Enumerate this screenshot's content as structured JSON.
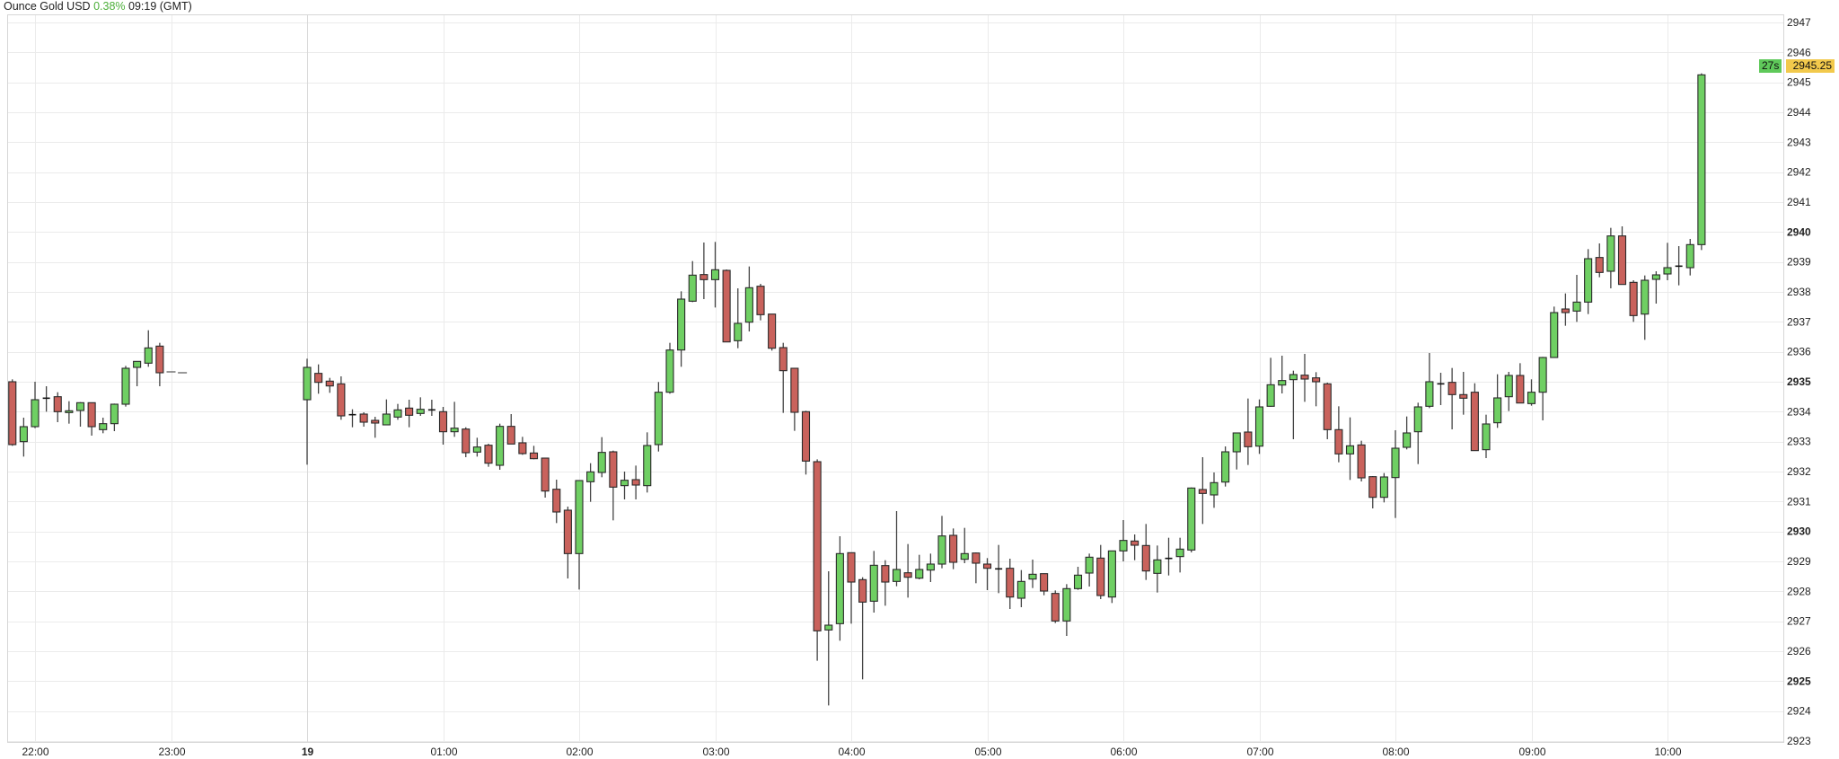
{
  "header": {
    "instrument": "Ounce Gold USD",
    "change": "0.38%",
    "time": "09:19 (GMT)"
  },
  "colors": {
    "up": "#6fcf63",
    "down": "#c9625c",
    "outline": "#2a2a2a",
    "grid": "#ebebeb",
    "price_tag": "#f2c94c",
    "timer_tag": "#5fc95a",
    "change": "#4caf3a"
  },
  "price_tag": {
    "value": "2945.25",
    "timer": "27s"
  },
  "chart_data": {
    "type": "candlestick",
    "interval": "5m",
    "ylim": [
      2923,
      2947
    ],
    "yticks": [
      2923,
      2924,
      2925,
      2926,
      2927,
      2928,
      2929,
      2930,
      2931,
      2932,
      2933,
      2934,
      2935,
      2936,
      2937,
      2938,
      2939,
      2940,
      2941,
      2942,
      2943,
      2944,
      2945,
      2946,
      2947
    ],
    "ytick_bold": [
      2925,
      2930,
      2935,
      2940
    ],
    "xticks": [
      {
        "t": "22:00",
        "label": "22:00"
      },
      {
        "t": "23:00",
        "label": "23:00"
      },
      {
        "t": "00:00",
        "label": "19",
        "bold": true
      },
      {
        "t": "01:00",
        "label": "01:00"
      },
      {
        "t": "02:00",
        "label": "02:00"
      },
      {
        "t": "03:00",
        "label": "03:00"
      },
      {
        "t": "04:00",
        "label": "04:00"
      },
      {
        "t": "05:00",
        "label": "05:00"
      },
      {
        "t": "06:00",
        "label": "06:00"
      },
      {
        "t": "07:00",
        "label": "07:00"
      },
      {
        "t": "08:00",
        "label": "08:00"
      },
      {
        "t": "09:00",
        "label": "09:00"
      },
      {
        "t": "10:00",
        "label": "10:00"
      }
    ],
    "grid": true,
    "candles_fields": [
      "time",
      "open",
      "high",
      "low",
      "close"
    ],
    "candles": [
      [
        "21:50",
        2935.0,
        2935.08,
        2932.86,
        2932.9
      ],
      [
        "21:55",
        2933.0,
        2933.8,
        2932.5,
        2933.5
      ],
      [
        "22:00",
        2933.5,
        2935.0,
        2933.45,
        2934.4
      ],
      [
        "22:05",
        2934.43,
        2934.85,
        2934.0,
        2934.45
      ],
      [
        "22:10",
        2934.5,
        2934.65,
        2933.65,
        2934.0
      ],
      [
        "22:15",
        2933.97,
        2934.35,
        2933.6,
        2934.03
      ],
      [
        "22:20",
        2934.04,
        2934.32,
        2933.5,
        2934.3
      ],
      [
        "22:25",
        2934.3,
        2934.3,
        2933.2,
        2933.5
      ],
      [
        "22:30",
        2933.4,
        2933.8,
        2933.28,
        2933.6
      ],
      [
        "22:35",
        2933.6,
        2934.27,
        2933.35,
        2934.25
      ],
      [
        "22:40",
        2934.25,
        2935.53,
        2934.17,
        2935.45
      ],
      [
        "22:45",
        2935.48,
        2935.68,
        2934.85,
        2935.68
      ],
      [
        "22:50",
        2935.62,
        2936.72,
        2935.5,
        2936.13
      ],
      [
        "22:55",
        2936.19,
        2936.3,
        2934.85,
        2935.3
      ],
      [
        "23:00",
        2935.33,
        2935.33,
        2935.33,
        2935.33
      ],
      [
        "23:05",
        2935.3,
        2935.3,
        2935.3,
        2935.3
      ],
      [
        "00:00",
        2934.4,
        2935.77,
        2932.23,
        2935.48
      ],
      [
        "00:05",
        2935.28,
        2935.58,
        2934.6,
        2934.98
      ],
      [
        "00:10",
        2935.02,
        2935.13,
        2934.63,
        2934.86
      ],
      [
        "00:15",
        2934.93,
        2935.18,
        2933.73,
        2933.86
      ],
      [
        "00:20",
        2933.9,
        2934.08,
        2933.48,
        2933.9
      ],
      [
        "00:25",
        2933.92,
        2933.98,
        2933.5,
        2933.65
      ],
      [
        "00:30",
        2933.71,
        2933.83,
        2933.13,
        2933.62
      ],
      [
        "00:35",
        2933.56,
        2934.41,
        2933.56,
        2933.92
      ],
      [
        "00:40",
        2933.82,
        2934.26,
        2933.73,
        2934.06
      ],
      [
        "00:45",
        2934.12,
        2934.4,
        2933.48,
        2933.88
      ],
      [
        "00:50",
        2933.94,
        2934.48,
        2933.86,
        2934.08
      ],
      [
        "00:55",
        2934.06,
        2934.4,
        2933.86,
        2934.06
      ],
      [
        "01:00",
        2934.0,
        2934.16,
        2932.9,
        2933.33
      ],
      [
        "01:05",
        2933.33,
        2934.33,
        2933.16,
        2933.45
      ],
      [
        "01:10",
        2933.42,
        2933.48,
        2932.48,
        2932.63
      ],
      [
        "01:15",
        2932.65,
        2933.13,
        2932.5,
        2932.82
      ],
      [
        "01:20",
        2932.88,
        2932.93,
        2932.16,
        2932.28
      ],
      [
        "01:25",
        2932.21,
        2933.6,
        2932.06,
        2933.51
      ],
      [
        "01:30",
        2933.51,
        2933.92,
        2932.92,
        2932.92
      ],
      [
        "01:35",
        2932.96,
        2933.16,
        2932.56,
        2932.6
      ],
      [
        "01:40",
        2932.62,
        2932.86,
        2932.41,
        2932.43
      ],
      [
        "01:45",
        2932.45,
        2932.45,
        2931.13,
        2931.35
      ],
      [
        "01:50",
        2931.41,
        2931.73,
        2930.28,
        2930.65
      ],
      [
        "01:55",
        2930.71,
        2930.83,
        2928.43,
        2929.26
      ],
      [
        "02:00",
        2929.26,
        2931.7,
        2928.06,
        2931.7
      ],
      [
        "02:05",
        2931.66,
        2932.28,
        2930.99,
        2931.99
      ],
      [
        "02:10",
        2931.97,
        2933.15,
        2931.81,
        2932.64
      ],
      [
        "02:15",
        2932.66,
        2932.7,
        2930.37,
        2931.48
      ],
      [
        "02:20",
        2931.53,
        2932.0,
        2931.07,
        2931.71
      ],
      [
        "02:25",
        2931.73,
        2932.2,
        2931.07,
        2931.55
      ],
      [
        "02:30",
        2931.53,
        2933.31,
        2931.3,
        2932.87
      ],
      [
        "02:35",
        2932.9,
        2934.99,
        2932.67,
        2934.65
      ],
      [
        "02:40",
        2934.65,
        2936.3,
        2934.6,
        2936.06
      ],
      [
        "02:45",
        2936.06,
        2938.02,
        2935.5,
        2937.76
      ],
      [
        "02:50",
        2937.69,
        2939.03,
        2937.66,
        2938.56
      ],
      [
        "02:55",
        2938.58,
        2939.65,
        2937.76,
        2938.41
      ],
      [
        "03:00",
        2938.41,
        2939.67,
        2937.48,
        2938.74
      ],
      [
        "03:05",
        2938.72,
        2938.75,
        2936.33,
        2936.33
      ],
      [
        "03:10",
        2936.37,
        2938.12,
        2936.12,
        2936.95
      ],
      [
        "03:15",
        2936.99,
        2938.85,
        2936.68,
        2938.14
      ],
      [
        "03:20",
        2938.19,
        2938.27,
        2937.05,
        2937.24
      ],
      [
        "03:25",
        2937.26,
        2937.26,
        2936.04,
        2936.12
      ],
      [
        "03:30",
        2936.14,
        2936.3,
        2933.96,
        2935.37
      ],
      [
        "03:35",
        2935.45,
        2935.45,
        2933.36,
        2933.98
      ],
      [
        "03:40",
        2934.0,
        2934.03,
        2931.9,
        2932.35
      ],
      [
        "03:45",
        2932.33,
        2932.41,
        2925.68,
        2926.68
      ],
      [
        "03:50",
        2926.71,
        2928.67,
        2924.19,
        2926.87
      ],
      [
        "03:55",
        2926.92,
        2929.84,
        2926.35,
        2929.26
      ],
      [
        "04:00",
        2929.29,
        2929.3,
        2926.92,
        2928.31
      ],
      [
        "04:05",
        2928.39,
        2928.47,
        2925.06,
        2927.64
      ],
      [
        "04:10",
        2927.67,
        2929.35,
        2927.29,
        2928.87
      ],
      [
        "04:15",
        2928.86,
        2929.04,
        2927.52,
        2928.31
      ],
      [
        "04:20",
        2928.33,
        2930.68,
        2928.17,
        2928.73
      ],
      [
        "04:25",
        2928.62,
        2929.58,
        2927.79,
        2928.47
      ],
      [
        "04:30",
        2928.44,
        2929.22,
        2928.4,
        2928.73
      ],
      [
        "04:35",
        2928.71,
        2929.26,
        2928.31,
        2928.91
      ],
      [
        "04:40",
        2928.91,
        2930.52,
        2928.77,
        2929.85
      ],
      [
        "04:45",
        2929.87,
        2930.1,
        2928.74,
        2928.97
      ],
      [
        "04:50",
        2929.07,
        2930.12,
        2928.94,
        2929.26
      ],
      [
        "04:55",
        2929.28,
        2929.3,
        2928.27,
        2928.94
      ],
      [
        "05:00",
        2928.91,
        2929.11,
        2928.04,
        2928.77
      ],
      [
        "05:05",
        2928.75,
        2929.55,
        2927.94,
        2928.75
      ],
      [
        "05:10",
        2928.77,
        2929.09,
        2927.41,
        2927.81
      ],
      [
        "05:15",
        2927.77,
        2928.71,
        2927.47,
        2928.33
      ],
      [
        "05:20",
        2928.41,
        2929.06,
        2928.11,
        2928.57
      ],
      [
        "05:25",
        2928.59,
        2928.6,
        2927.87,
        2928.01
      ],
      [
        "05:30",
        2927.93,
        2928.03,
        2926.94,
        2927.01
      ],
      [
        "05:35",
        2927.01,
        2928.24,
        2926.51,
        2928.09
      ],
      [
        "05:40",
        2928.09,
        2928.82,
        2928.05,
        2928.54
      ],
      [
        "05:45",
        2928.61,
        2929.26,
        2928.16,
        2929.14
      ],
      [
        "05:50",
        2929.11,
        2929.55,
        2927.74,
        2927.86
      ],
      [
        "05:55",
        2927.81,
        2929.36,
        2927.61,
        2929.35
      ],
      [
        "06:00",
        2929.35,
        2930.38,
        2929.0,
        2929.7
      ],
      [
        "06:05",
        2929.68,
        2929.9,
        2929.04,
        2929.54
      ],
      [
        "06:10",
        2929.53,
        2930.25,
        2928.38,
        2928.68
      ],
      [
        "06:15",
        2928.6,
        2929.53,
        2927.96,
        2929.05
      ],
      [
        "06:20",
        2929.1,
        2929.79,
        2928.53,
        2929.1
      ],
      [
        "06:25",
        2929.16,
        2929.79,
        2928.63,
        2929.41
      ],
      [
        "06:30",
        2929.38,
        2931.47,
        2929.3,
        2931.45
      ],
      [
        "06:35",
        2931.4,
        2932.48,
        2930.25,
        2931.27
      ],
      [
        "06:40",
        2931.22,
        2931.97,
        2930.79,
        2931.63
      ],
      [
        "06:45",
        2931.65,
        2932.84,
        2931.5,
        2932.66
      ],
      [
        "06:50",
        2932.66,
        2933.3,
        2932.07,
        2933.29
      ],
      [
        "06:55",
        2933.32,
        2934.44,
        2932.22,
        2932.83
      ],
      [
        "07:00",
        2932.85,
        2934.41,
        2932.59,
        2934.16
      ],
      [
        "07:05",
        2934.18,
        2935.8,
        2934.16,
        2934.9
      ],
      [
        "07:10",
        2934.89,
        2935.87,
        2934.61,
        2935.04
      ],
      [
        "07:15",
        2935.07,
        2935.37,
        2933.08,
        2935.24
      ],
      [
        "07:20",
        2935.22,
        2935.93,
        2934.33,
        2935.09
      ],
      [
        "07:25",
        2935.13,
        2935.32,
        2934.18,
        2935.0
      ],
      [
        "07:30",
        2934.93,
        2934.97,
        2933.08,
        2933.4
      ],
      [
        "07:35",
        2933.4,
        2934.18,
        2932.31,
        2932.59
      ],
      [
        "07:40",
        2932.59,
        2933.81,
        2931.72,
        2932.86
      ],
      [
        "07:45",
        2932.89,
        2933.03,
        2931.67,
        2931.79
      ],
      [
        "07:50",
        2931.83,
        2931.85,
        2930.77,
        2931.14
      ],
      [
        "07:55",
        2931.14,
        2931.95,
        2930.97,
        2931.82
      ],
      [
        "08:00",
        2931.8,
        2933.38,
        2930.45,
        2932.78
      ],
      [
        "08:05",
        2932.81,
        2933.84,
        2932.74,
        2933.29
      ],
      [
        "08:10",
        2933.33,
        2934.3,
        2932.25,
        2934.16
      ],
      [
        "08:15",
        2934.18,
        2935.96,
        2934.12,
        2935.0
      ],
      [
        "08:20",
        2934.91,
        2935.3,
        2934.22,
        2934.93
      ],
      [
        "08:25",
        2934.98,
        2935.46,
        2933.41,
        2934.57
      ],
      [
        "08:30",
        2934.57,
        2935.33,
        2933.9,
        2934.45
      ],
      [
        "08:35",
        2934.65,
        2934.95,
        2932.7,
        2932.7
      ],
      [
        "08:40",
        2932.73,
        2933.9,
        2932.45,
        2933.59
      ],
      [
        "08:45",
        2933.63,
        2935.25,
        2933.46,
        2934.46
      ],
      [
        "08:50",
        2934.5,
        2935.33,
        2934.02,
        2935.21
      ],
      [
        "08:55",
        2935.21,
        2935.62,
        2934.29,
        2934.29
      ],
      [
        "09:00",
        2934.27,
        2935.08,
        2934.2,
        2934.65
      ],
      [
        "09:05",
        2934.65,
        2935.83,
        2933.71,
        2935.81
      ],
      [
        "09:10",
        2935.81,
        2937.51,
        2935.8,
        2937.31
      ],
      [
        "09:15",
        2937.43,
        2937.95,
        2936.87,
        2937.31
      ],
      [
        "09:20",
        2937.36,
        2938.57,
        2937.0,
        2937.66
      ],
      [
        "09:25",
        2937.66,
        2939.43,
        2937.26,
        2939.11
      ],
      [
        "09:30",
        2939.15,
        2939.62,
        2938.49,
        2938.65
      ],
      [
        "09:35",
        2938.69,
        2940.14,
        2938.12,
        2939.87
      ],
      [
        "09:40",
        2939.87,
        2940.19,
        2938.25,
        2938.25
      ],
      [
        "09:45",
        2938.32,
        2938.39,
        2937.0,
        2937.21
      ],
      [
        "09:50",
        2937.26,
        2938.55,
        2936.4,
        2938.39
      ],
      [
        "09:55",
        2938.42,
        2938.69,
        2937.61,
        2938.57
      ],
      [
        "10:00",
        2938.6,
        2939.64,
        2938.39,
        2938.81
      ],
      [
        "10:05",
        2938.85,
        2939.53,
        2938.22,
        2938.86
      ],
      [
        "10:10",
        2938.81,
        2939.77,
        2938.55,
        2939.58
      ],
      [
        "10:15",
        2939.58,
        2945.3,
        2939.4,
        2945.25
      ]
    ]
  }
}
